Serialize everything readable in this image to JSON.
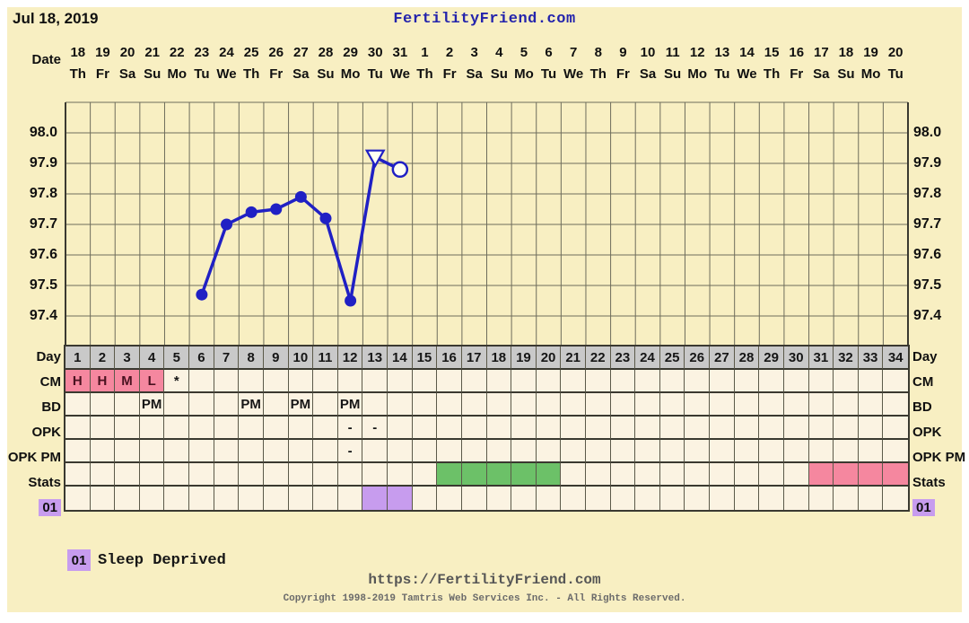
{
  "header": {
    "date_label": "Jul 18, 2019",
    "site": "FertilityFriend.com"
  },
  "calendar": {
    "label": "Date",
    "dates": [
      "18",
      "19",
      "20",
      "21",
      "22",
      "23",
      "24",
      "25",
      "26",
      "27",
      "28",
      "29",
      "30",
      "31",
      "1",
      "2",
      "3",
      "4",
      "5",
      "6",
      "7",
      "8",
      "9",
      "10",
      "11",
      "12",
      "13",
      "14",
      "15",
      "16",
      "17",
      "18",
      "19",
      "20"
    ],
    "weekdays": [
      "Th",
      "Fr",
      "Sa",
      "Su",
      "Mo",
      "Tu",
      "We",
      "Th",
      "Fr",
      "Sa",
      "Su",
      "Mo",
      "Tu",
      "We",
      "Th",
      "Fr",
      "Sa",
      "Su",
      "Mo",
      "Tu",
      "We",
      "Th",
      "Fr",
      "Sa",
      "Su",
      "Mo",
      "Tu",
      "We",
      "Th",
      "Fr",
      "Sa",
      "Su",
      "Mo",
      "Tu"
    ]
  },
  "chart_data": {
    "type": "line",
    "title": "",
    "x_axis": {
      "label": "Day",
      "days": 34
    },
    "y_axis": {
      "tick_labels": [
        "98.0",
        "97.9",
        "97.8",
        "97.7",
        "97.6",
        "97.5",
        "97.4"
      ],
      "tick_values": [
        98.0,
        97.9,
        97.8,
        97.7,
        97.6,
        97.5,
        97.4
      ],
      "range": [
        97.3,
        98.1
      ],
      "grid_step": 0.1,
      "shown_on": "both-sides"
    },
    "series": [
      {
        "name": "basal-body-temperature",
        "color": "#2020C4",
        "points": [
          {
            "day": 6,
            "temp": 97.47,
            "marker": "filled-circle"
          },
          {
            "day": 7,
            "temp": 97.7,
            "marker": "filled-circle"
          },
          {
            "day": 8,
            "temp": 97.74,
            "marker": "filled-circle"
          },
          {
            "day": 9,
            "temp": 97.75,
            "marker": "filled-circle"
          },
          {
            "day": 10,
            "temp": 97.79,
            "marker": "filled-circle"
          },
          {
            "day": 11,
            "temp": 97.72,
            "marker": "filled-circle"
          },
          {
            "day": 12,
            "temp": 97.45,
            "marker": "filled-circle"
          },
          {
            "day": 13,
            "temp": 97.92,
            "marker": "open-triangle-down"
          },
          {
            "day": 14,
            "temp": 97.88,
            "marker": "open-circle"
          }
        ]
      }
    ]
  },
  "table": {
    "day_label": "Day",
    "day_numbers": [
      "1",
      "2",
      "3",
      "4",
      "5",
      "6",
      "7",
      "8",
      "9",
      "10",
      "11",
      "12",
      "13",
      "14",
      "15",
      "16",
      "17",
      "18",
      "19",
      "20",
      "21",
      "22",
      "23",
      "24",
      "25",
      "26",
      "27",
      "28",
      "29",
      "30",
      "31",
      "32",
      "33",
      "34"
    ],
    "rows": [
      {
        "label": "CM",
        "cells": [
          {
            "day": 1,
            "text": "H",
            "bg": "pink"
          },
          {
            "day": 2,
            "text": "H",
            "bg": "pink"
          },
          {
            "day": 3,
            "text": "M",
            "bg": "pink"
          },
          {
            "day": 4,
            "text": "L",
            "bg": "pink"
          },
          {
            "day": 5,
            "text": "*"
          }
        ]
      },
      {
        "label": "BD",
        "cells": [
          {
            "day": 4,
            "text": "PM"
          },
          {
            "day": 8,
            "text": "PM"
          },
          {
            "day": 10,
            "text": "PM"
          },
          {
            "day": 12,
            "text": "PM"
          }
        ]
      },
      {
        "label": "OPK",
        "cells": [
          {
            "day": 12,
            "text": "-"
          },
          {
            "day": 13,
            "text": "-"
          }
        ]
      },
      {
        "label": "OPK PM",
        "cells": [
          {
            "day": 12,
            "text": "-"
          }
        ]
      },
      {
        "label": "Stats",
        "cells": [
          {
            "day": 16,
            "bg": "green"
          },
          {
            "day": 17,
            "bg": "green"
          },
          {
            "day": 18,
            "bg": "green"
          },
          {
            "day": 19,
            "bg": "green"
          },
          {
            "day": 20,
            "bg": "green"
          },
          {
            "day": 31,
            "bg": "pink"
          },
          {
            "day": 32,
            "bg": "pink"
          },
          {
            "day": 33,
            "bg": "pink"
          },
          {
            "day": 34,
            "bg": "pink"
          }
        ]
      },
      {
        "label": "01",
        "label_bg": "purple",
        "cells": [
          {
            "day": 13,
            "bg": "purple"
          },
          {
            "day": 14,
            "bg": "purple"
          }
        ]
      }
    ]
  },
  "legend": {
    "code": "01",
    "label": "Sleep Deprived"
  },
  "footer": {
    "url": "https://FertilityFriend.com",
    "copyright": "Copyright 1998-2019 Tamtris Web Services Inc. - All Rights Reserved."
  },
  "colors": {
    "panel_background": "#F8EFC2",
    "cell_background": "#FBF3E2",
    "day_header_gray": "#C9C9C9",
    "cm_pink": "#F5879F",
    "stats_green": "#6CC168",
    "stats_pink": "#F5879F",
    "note_purple": "#C79CEE",
    "line_blue": "#2020C4",
    "title_blue": "#2424AC",
    "grid_line": "#6e6d5c",
    "table_border": "#3a3930"
  }
}
